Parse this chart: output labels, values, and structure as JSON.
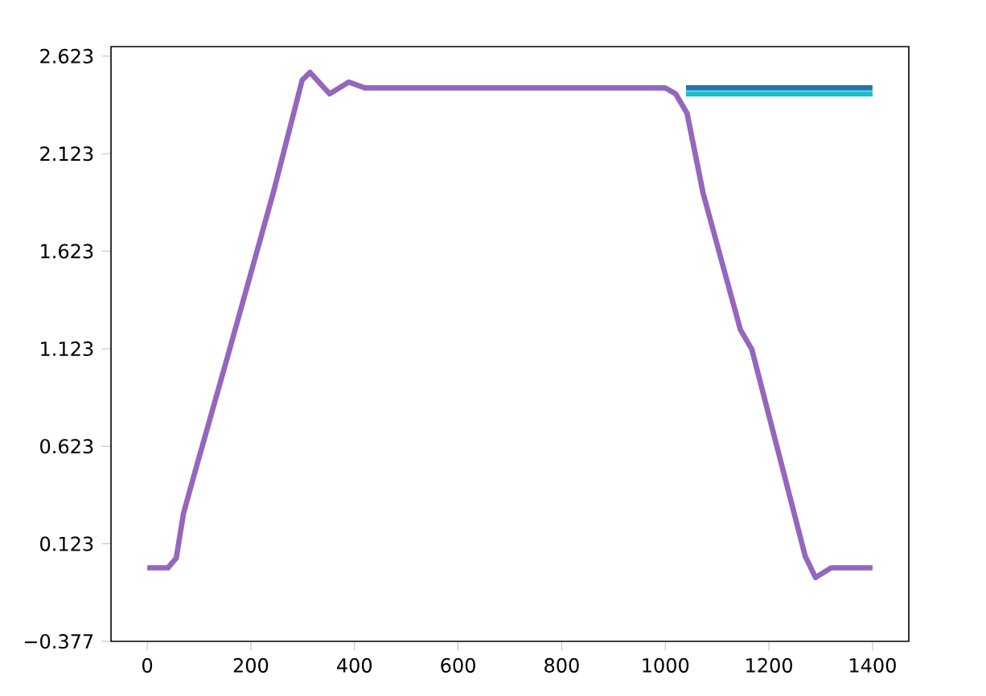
{
  "chart_data": {
    "type": "line",
    "xlim": [
      -70,
      1470
    ],
    "ylim": [
      -0.377,
      2.672
    ],
    "xticks": [
      0,
      200,
      400,
      600,
      800,
      1000,
      1200,
      1400
    ],
    "yticks": [
      {
        "value": -0.377,
        "label": "−0.377"
      },
      0.123,
      0.623,
      1.123,
      1.623,
      2.123,
      2.623
    ],
    "grid": false,
    "marker": "none",
    "line_style": "solid",
    "series": [
      {
        "color": "#1f77b4",
        "x": [
          1040,
          1200,
          1400
        ],
        "values": [
          2.46,
          2.46,
          2.46
        ]
      },
      {
        "color": "#17becf",
        "x": [
          1040,
          1200,
          1400
        ],
        "values": [
          2.43,
          2.43,
          2.43
        ]
      },
      {
        "color": "#9467bd",
        "x": [
          0,
          40,
          56,
          70,
          93,
          109,
          159,
          243,
          299,
          314,
          352,
          389,
          420,
          600,
          800,
          1000,
          1020,
          1042,
          1073,
          1145,
          1167,
          1270,
          1290,
          1320,
          1400
        ],
        "values": [
          0.0,
          0.0,
          0.05,
          0.28,
          0.5,
          0.65,
          1.12,
          1.92,
          2.5,
          2.54,
          2.43,
          2.49,
          2.46,
          2.46,
          2.46,
          2.46,
          2.43,
          2.33,
          1.92,
          1.22,
          1.12,
          0.06,
          -0.05,
          0.0,
          0.0
        ]
      }
    ]
  }
}
